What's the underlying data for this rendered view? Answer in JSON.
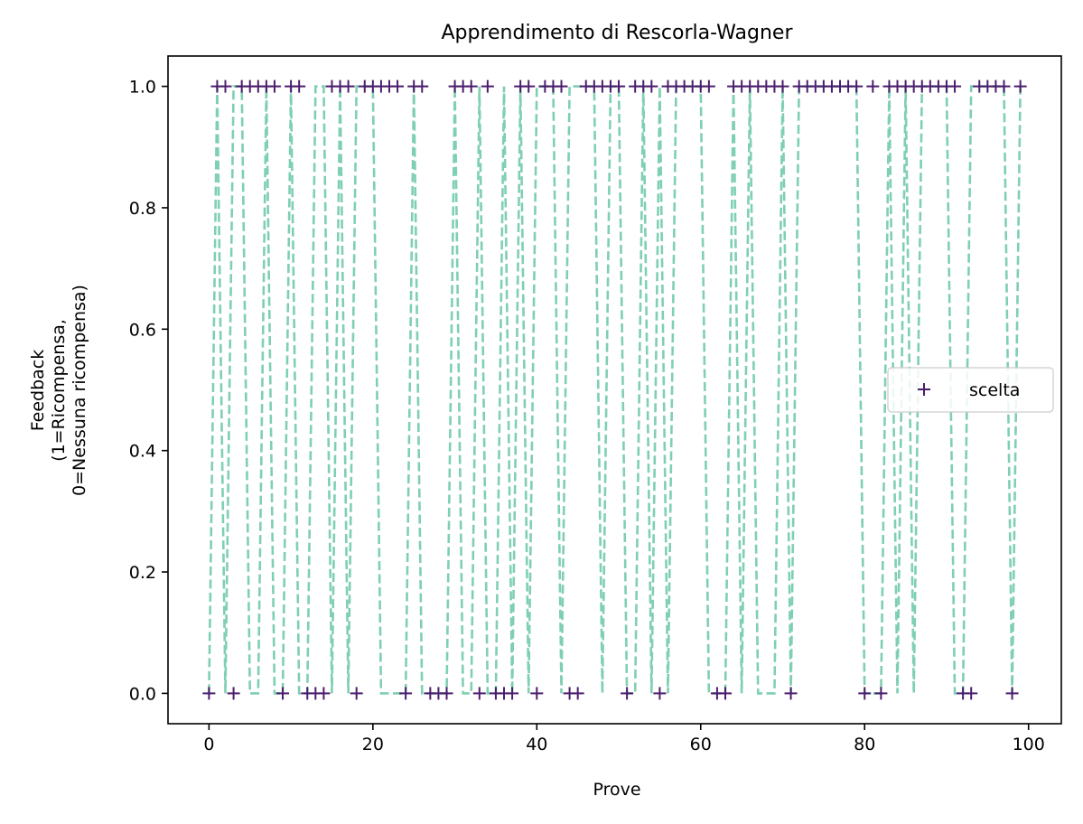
{
  "chart_data": {
    "type": "scatter",
    "title": "Apprendimento di Rescorla-Wagner",
    "xlabel": "Prove",
    "ylabel_lines": [
      "Feedback",
      "(1=Ricompensa,",
      "0=Nessuna ricompensa)"
    ],
    "xlim": [
      -5,
      104
    ],
    "ylim": [
      -0.05,
      1.05
    ],
    "xticks": [
      0,
      20,
      40,
      60,
      80,
      100
    ],
    "yticks": [
      0.0,
      0.2,
      0.4,
      0.6,
      0.8,
      1.0
    ],
    "xtick_labels": [
      "0",
      "20",
      "40",
      "60",
      "80",
      "100"
    ],
    "ytick_labels": [
      "0.0",
      "0.2",
      "0.4",
      "0.6",
      "0.8",
      "1.0"
    ],
    "legend_position": "center-right",
    "series": [
      {
        "name": "scelta",
        "style": "marker",
        "marker": "+",
        "color": "#4b1c6e",
        "x": [
          0,
          1,
          2,
          3,
          4,
          5,
          6,
          7,
          8,
          9,
          10,
          11,
          12,
          13,
          14,
          15,
          16,
          17,
          18,
          19,
          20,
          21,
          22,
          23,
          24,
          25,
          26,
          27,
          28,
          29,
          30,
          31,
          32,
          33,
          34,
          35,
          36,
          37,
          38,
          39,
          40,
          41,
          42,
          43,
          44,
          45,
          46,
          47,
          48,
          49,
          50,
          51,
          52,
          53,
          54,
          55,
          56,
          57,
          58,
          59,
          60,
          61,
          62,
          63,
          64,
          65,
          66,
          67,
          68,
          69,
          70,
          71,
          72,
          73,
          74,
          75,
          76,
          77,
          78,
          79,
          80,
          81,
          82,
          83,
          84,
          85,
          86,
          87,
          88,
          89,
          90,
          91,
          92,
          93,
          94,
          95,
          96,
          97,
          98,
          99
        ],
        "y": [
          0,
          1,
          1,
          0,
          1,
          1,
          1,
          1,
          1,
          0,
          1,
          1,
          0,
          0,
          0,
          1,
          1,
          1,
          0,
          1,
          1,
          1,
          1,
          1,
          0,
          1,
          1,
          0,
          0,
          0,
          1,
          1,
          1,
          0,
          1,
          0,
          0,
          0,
          1,
          1,
          0,
          1,
          1,
          1,
          0,
          0,
          1,
          1,
          1,
          1,
          1,
          0,
          1,
          1,
          1,
          0,
          1,
          1,
          1,
          1,
          1,
          1,
          0,
          0,
          1,
          1,
          1,
          1,
          1,
          1,
          1,
          0,
          1,
          1,
          1,
          1,
          1,
          1,
          1,
          1,
          0,
          1,
          0,
          1,
          1,
          1,
          1,
          1,
          1,
          1,
          1,
          1,
          0,
          0,
          1,
          1,
          1,
          1,
          0,
          1
        ]
      },
      {
        "name": "",
        "style": "dashed-line",
        "color": "#7ecfb3",
        "x": [
          0,
          1,
          2,
          3,
          4,
          5,
          6,
          7,
          8,
          9,
          10,
          11,
          12,
          13,
          14,
          15,
          16,
          17,
          18,
          19,
          20,
          21,
          22,
          23,
          24,
          25,
          26,
          27,
          28,
          29,
          30,
          31,
          32,
          33,
          34,
          35,
          36,
          37,
          38,
          39,
          40,
          41,
          42,
          43,
          44,
          45,
          46,
          47,
          48,
          49,
          50,
          51,
          52,
          53,
          54,
          55,
          56,
          57,
          58,
          59,
          60,
          61,
          62,
          63,
          64,
          65,
          66,
          67,
          68,
          69,
          70,
          71,
          72,
          73,
          74,
          75,
          76,
          77,
          78,
          79,
          80,
          81,
          82,
          83,
          84,
          85,
          86,
          87,
          88,
          89,
          90,
          91,
          92,
          93,
          94,
          95,
          96,
          97,
          98,
          99
        ],
        "y": [
          0,
          1,
          0,
          1,
          1,
          0,
          0,
          1,
          0,
          0,
          1,
          0,
          0,
          1,
          1,
          0,
          1,
          0,
          1,
          1,
          1,
          0,
          0,
          0,
          0,
          1,
          0,
          0,
          0,
          0,
          1,
          0,
          0,
          1,
          0,
          0,
          1,
          0,
          1,
          0,
          1,
          1,
          1,
          0,
          1,
          1,
          1,
          1,
          0,
          1,
          1,
          0,
          0,
          1,
          0,
          1,
          0,
          1,
          1,
          1,
          1,
          0,
          0,
          0,
          1,
          0,
          1,
          0,
          0,
          0,
          1,
          0,
          1,
          1,
          1,
          1,
          1,
          1,
          1,
          1,
          0,
          0,
          0,
          1,
          0,
          1,
          0,
          1,
          1,
          1,
          1,
          0,
          0,
          1,
          1,
          1,
          1,
          1,
          0,
          1
        ]
      }
    ]
  }
}
